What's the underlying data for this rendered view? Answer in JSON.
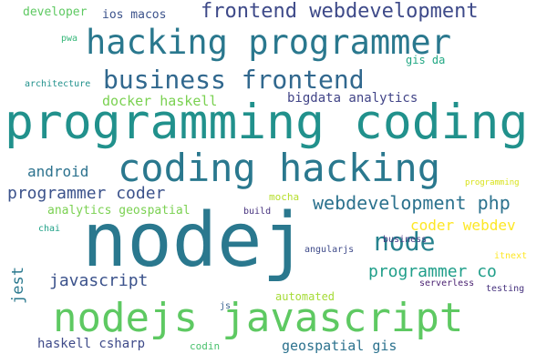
{
  "words": [
    {
      "text": "developer",
      "color": "#5ec962"
    },
    {
      "text": "ios macos",
      "color": "#3b528b"
    },
    {
      "text": "frontend webdevelopment",
      "color": "#3e4a89"
    },
    {
      "text": "pwa",
      "color": "#35b779"
    },
    {
      "text": "hacking programmer",
      "color": "#2a788e"
    },
    {
      "text": "gis da",
      "color": "#22a884"
    },
    {
      "text": "business frontend",
      "color": "#31688e"
    },
    {
      "text": "architecture",
      "color": "#21918c"
    },
    {
      "text": "docker haskell",
      "color": "#7ad151"
    },
    {
      "text": "bigdata analytics",
      "color": "#414487"
    },
    {
      "text": "programming coding",
      "color": "#21918c"
    },
    {
      "text": "coding hacking",
      "color": "#2a788e"
    },
    {
      "text": "android",
      "color": "#2c728e"
    },
    {
      "text": "programmer coder",
      "color": "#3b528b"
    },
    {
      "text": "webdevelopment php",
      "color": "#2c728e"
    },
    {
      "text": "analytics geospatial",
      "color": "#7ad151"
    },
    {
      "text": "mocha",
      "color": "#b5de2b"
    },
    {
      "text": "build",
      "color": "#46327e"
    },
    {
      "text": "coder webdev",
      "color": "#fde725"
    },
    {
      "text": "programming",
      "color": "#d8e219"
    },
    {
      "text": "chai",
      "color": "#1fa187"
    },
    {
      "text": "nodej",
      "color": "#2a788e"
    },
    {
      "text": "node",
      "color": "#26828e"
    },
    {
      "text": "business",
      "color": "#443983"
    },
    {
      "text": "jest",
      "color": "#2a788e"
    },
    {
      "text": "angularjs",
      "color": "#3e4a89"
    },
    {
      "text": "itnext",
      "color": "#fde725"
    },
    {
      "text": "programmer co",
      "color": "#1f9e89"
    },
    {
      "text": "javascript",
      "color": "#3b528b"
    },
    {
      "text": "serverless",
      "color": "#481f70"
    },
    {
      "text": "testing",
      "color": "#46327e"
    },
    {
      "text": "automated",
      "color": "#a5db36"
    },
    {
      "text": "js",
      "color": "#355f8d"
    },
    {
      "text": "nodejs javascript",
      "color": "#5ec962"
    },
    {
      "text": "haskell csharp",
      "color": "#3e4a89"
    },
    {
      "text": "codin",
      "color": "#4ac16d"
    },
    {
      "text": "geospatial gis",
      "color": "#2c728e"
    }
  ]
}
